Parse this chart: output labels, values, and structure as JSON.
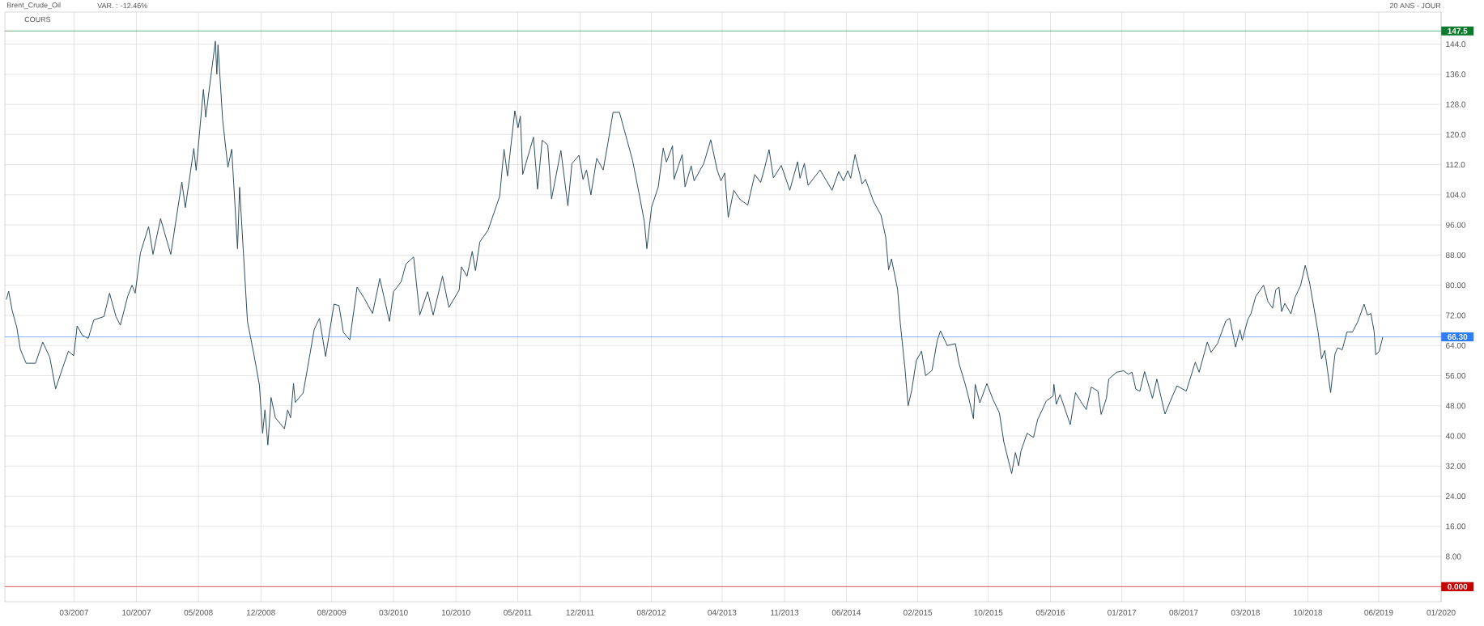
{
  "chart_data": {
    "type": "line",
    "title": "Brent_Crude_Oil",
    "subtitle": "VAR. : -12.46%",
    "annotations": [
      "20 ANS - JOUR",
      "COURS"
    ],
    "x": [
      "2006-07-12",
      "2006-07-20",
      "2006-08-01",
      "2006-08-17",
      "2006-08-29",
      "2006-09-18",
      "2006-10-20",
      "2006-11-14",
      "2006-12-08",
      "2006-12-28",
      "2007-01-19",
      "2007-02-10",
      "2007-02-28",
      "2007-03-12",
      "2007-03-30",
      "2007-04-19",
      "2007-05-08",
      "2007-06-12",
      "2007-07-01",
      "2007-07-23",
      "2007-08-07",
      "2007-09-01",
      "2007-09-16",
      "2007-09-27",
      "2007-10-15",
      "2007-11-12",
      "2007-11-27",
      "2007-12-23",
      "2008-01-27",
      "2008-03-05",
      "2008-03-17",
      "2008-04-15",
      "2008-04-23",
      "2008-05-18",
      "2008-05-26",
      "2008-06-13",
      "2008-06-28",
      "2008-07-03",
      "2008-07-07",
      "2008-07-23",
      "2008-08-10",
      "2008-08-23",
      "2008-09-12",
      "2008-09-19",
      "2008-10-16",
      "2008-11-07",
      "2008-11-26",
      "2008-12-07",
      "2008-12-15",
      "2008-12-25",
      "2009-01-05",
      "2009-01-20",
      "2009-02-20",
      "2009-03-03",
      "2009-03-13",
      "2009-03-23",
      "2009-03-29",
      "2009-04-25",
      "2009-05-11",
      "2009-06-02",
      "2009-06-20",
      "2009-07-11",
      "2009-08-09",
      "2009-08-26",
      "2009-09-10",
      "2009-10-02",
      "2009-10-27",
      "2009-11-20",
      "2009-12-19",
      "2010-01-13",
      "2010-02-15",
      "2010-03-01",
      "2010-03-27",
      "2010-04-13",
      "2010-05-09",
      "2010-05-30",
      "2010-06-26",
      "2010-07-15",
      "2010-08-16",
      "2010-09-07",
      "2010-10-12",
      "2010-10-20",
      "2010-11-08",
      "2010-11-26",
      "2010-12-07",
      "2010-12-22",
      "2011-01-19",
      "2011-02-28",
      "2011-03-15",
      "2011-03-27",
      "2011-04-21",
      "2011-05-02",
      "2011-05-10",
      "2011-05-18",
      "2011-06-24",
      "2011-07-08",
      "2011-07-24",
      "2011-08-12",
      "2011-08-25",
      "2011-09-26",
      "2011-10-20",
      "2011-11-03",
      "2011-11-27",
      "2011-12-11",
      "2011-12-23",
      "2012-01-07",
      "2012-01-27",
      "2012-02-18",
      "2012-03-05",
      "2012-03-23",
      "2012-04-14",
      "2012-05-10",
      "2012-05-29",
      "2012-06-22",
      "2012-07-08",
      "2012-07-17",
      "2012-08-02",
      "2012-08-25",
      "2012-09-11",
      "2012-09-22",
      "2012-10-13",
      "2012-10-18",
      "2012-11-15",
      "2012-11-25",
      "2012-12-16",
      "2012-12-26",
      "2013-01-28",
      "2013-02-21",
      "2013-03-15",
      "2013-03-28",
      "2013-04-10",
      "2013-04-22",
      "2013-05-11",
      "2013-06-02",
      "2013-06-28",
      "2013-07-22",
      "2013-08-11",
      "2013-08-23",
      "2013-09-09",
      "2013-09-24",
      "2013-10-21",
      "2013-11-19",
      "2013-12-16",
      "2013-12-24",
      "2014-01-08",
      "2014-01-21",
      "2014-03-03",
      "2014-04-13",
      "2014-05-06",
      "2014-05-22",
      "2014-06-06",
      "2014-06-16",
      "2014-07-01",
      "2014-07-25",
      "2014-08-06",
      "2014-09-02",
      "2014-09-28",
      "2014-10-14",
      "2014-10-24",
      "2014-11-03",
      "2014-11-24",
      "2014-12-03",
      "2014-12-19",
      "2014-12-30",
      "2015-01-11",
      "2015-01-27",
      "2015-02-14",
      "2015-02-28",
      "2015-03-22",
      "2015-04-09",
      "2015-04-20",
      "2015-05-13",
      "2015-06-10",
      "2015-06-23",
      "2015-07-14",
      "2015-07-27",
      "2015-08-11",
      "2015-08-17",
      "2015-09-02",
      "2015-09-26",
      "2015-10-17",
      "2015-11-08",
      "2015-11-23",
      "2015-12-20",
      "2016-01-02",
      "2016-01-13",
      "2016-01-21",
      "2016-02-11",
      "2016-03-04",
      "2016-03-18",
      "2016-04-17",
      "2016-05-10",
      "2016-05-13",
      "2016-05-21",
      "2016-06-03",
      "2016-07-08",
      "2016-07-26",
      "2016-08-16",
      "2016-09-01",
      "2016-09-18",
      "2016-10-11",
      "2016-10-22",
      "2016-11-09",
      "2016-11-17",
      "2016-12-14",
      "2017-01-07",
      "2017-01-23",
      "2017-02-05",
      "2017-02-18",
      "2017-03-04",
      "2017-03-20",
      "2017-04-16",
      "2017-05-01",
      "2017-05-29",
      "2017-06-22",
      "2017-07-09",
      "2017-08-10",
      "2017-09-10",
      "2017-09-23",
      "2017-10-21",
      "2017-11-03",
      "2017-11-25",
      "2017-12-24",
      "2018-01-06",
      "2018-01-26",
      "2018-02-10",
      "2018-02-18",
      "2018-03-09",
      "2018-03-20",
      "2018-04-05",
      "2018-05-02",
      "2018-05-17",
      "2018-06-02",
      "2018-06-13",
      "2018-06-24",
      "2018-07-03",
      "2018-07-14",
      "2018-08-04",
      "2018-08-18",
      "2018-09-06",
      "2018-09-22",
      "2018-10-07",
      "2018-10-20",
      "2018-11-05",
      "2018-11-17",
      "2018-11-28",
      "2018-12-18",
      "2019-01-02",
      "2019-01-11",
      "2019-01-27",
      "2019-02-12",
      "2019-03-03",
      "2019-03-21",
      "2019-04-12",
      "2019-04-23",
      "2019-05-05",
      "2019-05-16",
      "2019-05-22",
      "2019-06-03",
      "2019-06-15"
    ],
    "values": [
      76.2,
      78.4,
      73.3,
      68.8,
      63.0,
      59.3,
      59.3,
      64.9,
      60.9,
      52.5,
      57.6,
      62.5,
      61.3,
      69.2,
      66.7,
      65.9,
      70.8,
      71.7,
      77.9,
      71.7,
      69.4,
      77.0,
      80.0,
      77.9,
      88.6,
      95.6,
      88.2,
      97.7,
      88.2,
      107.4,
      100.6,
      116.3,
      110.5,
      132.0,
      124.6,
      135.7,
      144.8,
      136.0,
      143.8,
      123.8,
      111.3,
      116.1,
      89.7,
      106.0,
      70.4,
      61.7,
      53.5,
      40.7,
      46.9,
      37.6,
      50.2,
      44.8,
      41.9,
      46.9,
      44.8,
      53.9,
      48.9,
      51.4,
      58.4,
      68.3,
      71.2,
      61.1,
      75.0,
      74.6,
      67.5,
      65.5,
      79.5,
      76.6,
      72.5,
      81.8,
      70.4,
      78.3,
      80.9,
      85.7,
      87.5,
      72.1,
      78.3,
      72.1,
      82.4,
      74.1,
      78.7,
      84.9,
      82.4,
      89.0,
      83.9,
      91.5,
      94.6,
      103.6,
      116.1,
      109.0,
      126.3,
      121.8,
      124.9,
      109.4,
      119.3,
      105.5,
      118.5,
      117.2,
      102.9,
      115.8,
      101.1,
      112.3,
      114.5,
      108.1,
      110.6,
      104.0,
      113.7,
      110.6,
      117.6,
      125.9,
      125.9,
      118.5,
      113.1,
      103.6,
      97.0,
      89.7,
      100.7,
      106.1,
      116.4,
      112.7,
      117.0,
      108.1,
      114.7,
      106.1,
      111.7,
      107.7,
      112.3,
      118.6,
      110.6,
      107.7,
      109.8,
      98.0,
      105.2,
      102.7,
      101.3,
      109.4,
      107.3,
      110.6,
      116.0,
      108.5,
      111.8,
      105.2,
      112.8,
      108.4,
      112.3,
      106.5,
      110.6,
      105.2,
      110.2,
      107.7,
      110.4,
      108.4,
      114.7,
      106.9,
      108.1,
      102.3,
      98.6,
      92.8,
      84.1,
      87.0,
      78.8,
      70.0,
      58.0,
      48.0,
      52.0,
      60.0,
      62.5,
      56.0,
      57.4,
      65.4,
      67.9,
      64.0,
      64.5,
      59.1,
      53.7,
      49.7,
      44.6,
      53.7,
      48.8,
      53.9,
      49.7,
      46.1,
      38.5,
      30.0,
      35.6,
      32.1,
      36.0,
      40.7,
      39.6,
      44.3,
      49.3,
      50.6,
      53.7,
      48.4,
      51.0,
      43.0,
      51.5,
      48.8,
      47.0,
      53.0,
      51.9,
      45.7,
      50.0,
      55.1,
      56.9,
      57.3,
      56.4,
      56.9,
      52.4,
      51.9,
      57.1,
      50.0,
      55.1,
      45.8,
      50.3,
      53.3,
      51.9,
      59.6,
      56.9,
      64.9,
      62.2,
      64.5,
      70.6,
      71.2,
      63.6,
      68.2,
      65.4,
      70.9,
      72.5,
      77.0,
      80.0,
      75.7,
      73.9,
      78.8,
      79.5,
      73.0,
      75.2,
      72.4,
      76.8,
      79.9,
      85.3,
      80.6,
      74.8,
      67.6,
      60.4,
      62.7,
      51.5,
      61.8,
      63.4,
      62.9,
      67.6,
      67.6,
      70.3,
      75.0,
      72.1,
      72.5,
      67.9,
      61.5,
      62.5,
      66.3
    ],
    "color": "#2e4d5c",
    "xlim": [
      "2006-07-07",
      "2020-01-01"
    ],
    "ylim": [
      -4,
      152.5
    ],
    "xticks": [
      {
        "value": "2007-03",
        "label": "03/2007"
      },
      {
        "value": "2007-10",
        "label": "10/2007"
      },
      {
        "value": "2008-05",
        "label": "05/2008"
      },
      {
        "value": "2008-12",
        "label": "12/2008"
      },
      {
        "value": "2009-08",
        "label": "08/2009"
      },
      {
        "value": "2010-03",
        "label": "03/2010"
      },
      {
        "value": "2010-10",
        "label": "10/2010"
      },
      {
        "value": "2011-05",
        "label": "05/2011"
      },
      {
        "value": "2011-12",
        "label": "12/2011"
      },
      {
        "value": "2012-08",
        "label": "08/2012"
      },
      {
        "value": "2013-04",
        "label": "04/2013"
      },
      {
        "value": "2013-11",
        "label": "11/2013"
      },
      {
        "value": "2014-06",
        "label": "06/2014"
      },
      {
        "value": "2015-02",
        "label": "02/2015"
      },
      {
        "value": "2015-10",
        "label": "10/2015"
      },
      {
        "value": "2016-05",
        "label": "05/2016"
      },
      {
        "value": "2017-01",
        "label": "01/2017"
      },
      {
        "value": "2017-08",
        "label": "08/2017"
      },
      {
        "value": "2018-03",
        "label": "03/2018"
      },
      {
        "value": "2018-10",
        "label": "10/2018"
      },
      {
        "value": "2019-06",
        "label": "06/2019"
      },
      {
        "value": "2020-01",
        "label": "01/2020"
      }
    ],
    "yticks": [
      {
        "value": 0,
        "label": null
      },
      {
        "value": 8,
        "label": "8.00"
      },
      {
        "value": 16,
        "label": "16.00"
      },
      {
        "value": 24,
        "label": "24.00"
      },
      {
        "value": 32,
        "label": "32.00"
      },
      {
        "value": 40,
        "label": "40.00"
      },
      {
        "value": 48,
        "label": "48.00"
      },
      {
        "value": 56,
        "label": "56.00"
      },
      {
        "value": 64,
        "label": "64.00"
      },
      {
        "value": 72,
        "label": "72.00"
      },
      {
        "value": 80,
        "label": "80.00"
      },
      {
        "value": 88,
        "label": "88.00"
      },
      {
        "value": 96,
        "label": "96.00"
      },
      {
        "value": 104,
        "label": "104.0"
      },
      {
        "value": 112,
        "label": "112.0"
      },
      {
        "value": 120,
        "label": "120.0"
      },
      {
        "value": 128,
        "label": "128.0"
      },
      {
        "value": 136,
        "label": "136.0"
      },
      {
        "value": 144,
        "label": "144.0"
      }
    ],
    "grid": true,
    "ref_lines": [
      {
        "axis": "y",
        "value": 147.5,
        "label": "147.5",
        "color": "#0b7a2b"
      },
      {
        "axis": "y",
        "value": 66.3,
        "label": "66.30",
        "color": "#2f7df6"
      },
      {
        "axis": "y",
        "value": 0,
        "label": "0.000",
        "color": "#c40000"
      }
    ]
  }
}
